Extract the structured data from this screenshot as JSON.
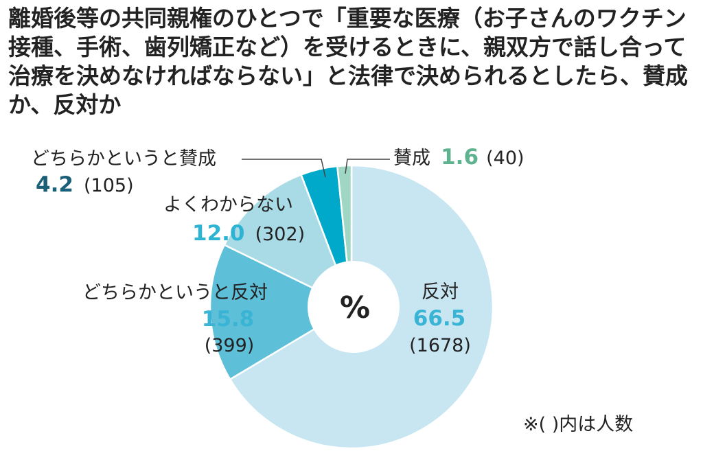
{
  "chart_data": {
    "type": "pie",
    "title": "離婚後等の共同親権のひとつで「重要な医療（お子さんのワクチン接種、手術、歯列矯正など）を受けるときに、親双方で話し合って治療を決めなければならない」と法律で決められるとしたら、賛成か、反対か",
    "center_label": "%",
    "note": "※( )内は人数",
    "slices": [
      {
        "label": "賛成",
        "value": 1.6,
        "count": "(40)",
        "color": "#9fd7c4",
        "text_color": "#5fb28f"
      },
      {
        "label": "どちらかというと賛成",
        "value": 4.2,
        "count": "(105)",
        "color": "#00a9c9",
        "text_color": "#1b5f78"
      },
      {
        "label": "よくわからない",
        "value": 12.0,
        "count": "(302)",
        "color": "#a9dbe6",
        "text_color": "#2fb3d2"
      },
      {
        "label": "どちらかというと反対",
        "value": 15.8,
        "count": "(399)",
        "color": "#5ebfd8",
        "text_color": "#3ab4d4"
      },
      {
        "label": "反対",
        "value": 66.5,
        "count": "(1678)",
        "color": "#c8e6f2",
        "text_color": "#3ab4d4"
      }
    ]
  }
}
